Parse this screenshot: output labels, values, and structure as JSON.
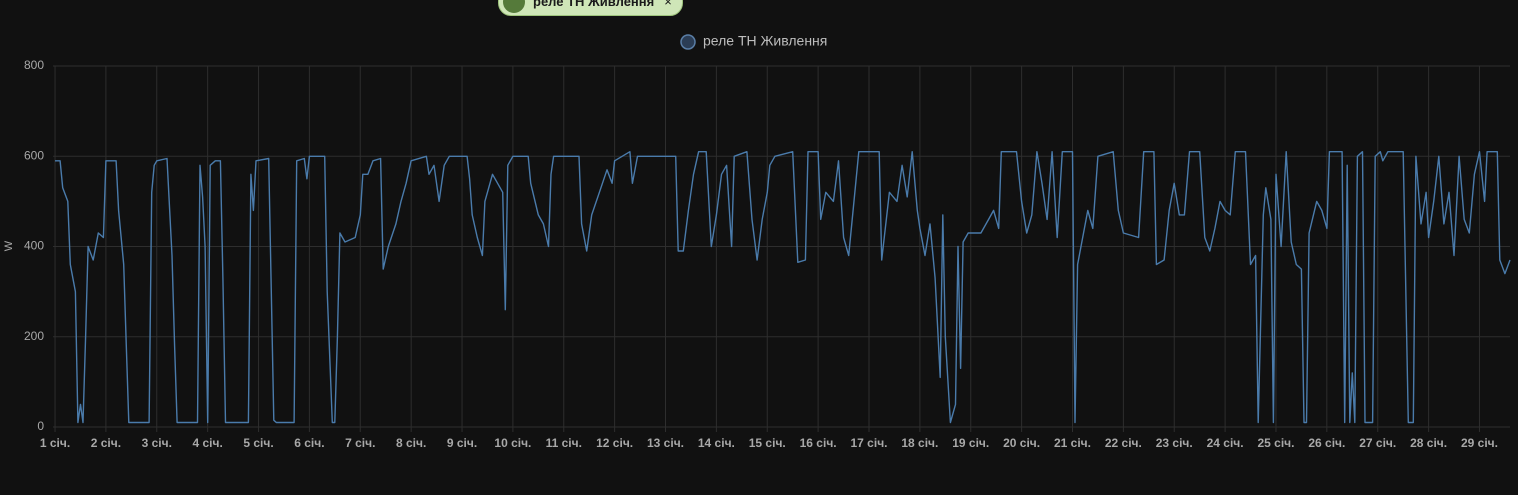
{
  "chip": {
    "label": "реле ТН Живлення"
  },
  "chart_data": {
    "type": "line",
    "y_label": "W",
    "legend": "top",
    "grid": true,
    "xlim": [
      0.96,
      29.6
    ],
    "ylim": [
      0,
      800
    ],
    "yticks": [
      0,
      200,
      400,
      600,
      800
    ],
    "xticks": [
      {
        "value": 1,
        "label": "1 січ."
      },
      {
        "value": 2,
        "label": "2 січ."
      },
      {
        "value": 3,
        "label": "3 січ."
      },
      {
        "value": 4,
        "label": "4 січ."
      },
      {
        "value": 5,
        "label": "5 січ."
      },
      {
        "value": 6,
        "label": "6 січ."
      },
      {
        "value": 7,
        "label": "7 січ."
      },
      {
        "value": 8,
        "label": "8 січ."
      },
      {
        "value": 9,
        "label": "9 січ."
      },
      {
        "value": 10,
        "label": "10 січ."
      },
      {
        "value": 11,
        "label": "11 січ."
      },
      {
        "value": 12,
        "label": "12 січ."
      },
      {
        "value": 13,
        "label": "13 січ."
      },
      {
        "value": 14,
        "label": "14 січ."
      },
      {
        "value": 15,
        "label": "15 січ."
      },
      {
        "value": 16,
        "label": "16 січ."
      },
      {
        "value": 17,
        "label": "17 січ."
      },
      {
        "value": 18,
        "label": "18 січ."
      },
      {
        "value": 19,
        "label": "19 січ."
      },
      {
        "value": 20,
        "label": "20 січ."
      },
      {
        "value": 21,
        "label": "21 січ."
      },
      {
        "value": 22,
        "label": "22 січ."
      },
      {
        "value": 23,
        "label": "23 січ."
      },
      {
        "value": 24,
        "label": "24 січ."
      },
      {
        "value": 25,
        "label": "25 січ."
      },
      {
        "value": 26,
        "label": "26 січ."
      },
      {
        "value": 27,
        "label": "27 січ."
      },
      {
        "value": 28,
        "label": "28 січ."
      },
      {
        "value": 29,
        "label": "29 січ."
      }
    ],
    "x": [
      1.0,
      1.1,
      1.15,
      1.25,
      1.3,
      1.4,
      1.45,
      1.5,
      1.55,
      1.6,
      1.65,
      1.75,
      1.85,
      1.95,
      2.0,
      2.2,
      2.25,
      2.35,
      2.4,
      2.45,
      2.85,
      2.9,
      2.95,
      3.0,
      3.2,
      3.3,
      3.35,
      3.4,
      3.8,
      3.85,
      3.9,
      3.95,
      4.0,
      4.05,
      4.15,
      4.25,
      4.3,
      4.35,
      4.8,
      4.85,
      4.9,
      4.95,
      5.2,
      5.3,
      5.35,
      5.7,
      5.75,
      5.9,
      5.95,
      6.0,
      6.3,
      6.35,
      6.45,
      6.5,
      6.55,
      6.6,
      6.7,
      6.9,
      7.0,
      7.05,
      7.15,
      7.25,
      7.4,
      7.45,
      7.55,
      7.7,
      7.8,
      7.9,
      8.0,
      8.3,
      8.35,
      8.45,
      8.55,
      8.65,
      8.75,
      9.1,
      9.15,
      9.2,
      9.3,
      9.4,
      9.45,
      9.6,
      9.8,
      9.85,
      9.9,
      10.0,
      10.3,
      10.35,
      10.5,
      10.6,
      10.7,
      10.75,
      10.8,
      11.3,
      11.35,
      11.45,
      11.55,
      11.7,
      11.85,
      11.95,
      12.0,
      12.3,
      12.35,
      12.45,
      13.2,
      13.25,
      13.35,
      13.45,
      13.55,
      13.65,
      13.8,
      13.9,
      14.0,
      14.1,
      14.2,
      14.3,
      14.35,
      14.6,
      14.7,
      14.8,
      14.9,
      15.0,
      15.05,
      15.15,
      15.5,
      15.6,
      15.75,
      15.8,
      16.0,
      16.05,
      16.15,
      16.3,
      16.4,
      16.5,
      16.6,
      16.8,
      17.2,
      17.25,
      17.4,
      17.55,
      17.65,
      17.75,
      17.85,
      17.95,
      18.0,
      18.1,
      18.2,
      18.3,
      18.4,
      18.45,
      18.5,
      18.6,
      18.7,
      18.75,
      18.8,
      18.85,
      18.95,
      19.2,
      19.35,
      19.45,
      19.55,
      19.6,
      19.9,
      20.0,
      20.1,
      20.2,
      20.3,
      20.4,
      20.5,
      20.6,
      20.7,
      20.8,
      21.0,
      21.05,
      21.1,
      21.3,
      21.4,
      21.5,
      21.8,
      21.9,
      22.0,
      22.3,
      22.4,
      22.6,
      22.65,
      22.8,
      22.9,
      23.0,
      23.1,
      23.2,
      23.3,
      23.5,
      23.6,
      23.7,
      23.8,
      23.9,
      24.0,
      24.1,
      24.2,
      24.4,
      24.5,
      24.6,
      24.65,
      24.75,
      24.8,
      24.9,
      24.95,
      25.0,
      25.1,
      25.2,
      25.3,
      25.4,
      25.5,
      25.55,
      25.6,
      25.65,
      25.8,
      25.9,
      26.0,
      26.05,
      26.3,
      26.35,
      26.4,
      26.45,
      26.5,
      26.55,
      26.6,
      26.7,
      26.75,
      26.9,
      26.95,
      27.05,
      27.1,
      27.2,
      27.5,
      27.6,
      27.7,
      27.75,
      27.85,
      27.95,
      28.0,
      28.1,
      28.2,
      28.3,
      28.4,
      28.5,
      28.6,
      28.7,
      28.8,
      28.9,
      29.0,
      29.1,
      29.15,
      29.35,
      29.4,
      29.5,
      29.6
    ],
    "series": [
      {
        "name": "реле ТН Живлення",
        "color": "#4a7bab",
        "values": [
          590,
          590,
          530,
          500,
          360,
          300,
          10,
          50,
          10,
          200,
          400,
          370,
          430,
          420,
          590,
          590,
          480,
          360,
          180,
          10,
          10,
          520,
          580,
          590,
          595,
          380,
          180,
          10,
          10,
          580,
          510,
          400,
          10,
          580,
          590,
          590,
          330,
          10,
          10,
          560,
          480,
          590,
          595,
          15,
          10,
          10,
          590,
          595,
          550,
          600,
          600,
          300,
          10,
          10,
          200,
          430,
          410,
          420,
          470,
          560,
          560,
          590,
          595,
          350,
          400,
          450,
          500,
          540,
          590,
          600,
          560,
          580,
          500,
          580,
          600,
          600,
          550,
          470,
          420,
          380,
          500,
          560,
          520,
          260,
          580,
          600,
          600,
          540,
          470,
          450,
          400,
          560,
          600,
          600,
          450,
          390,
          470,
          520,
          570,
          540,
          590,
          610,
          540,
          600,
          600,
          390,
          390,
          480,
          560,
          610,
          610,
          400,
          470,
          560,
          580,
          400,
          600,
          610,
          460,
          370,
          460,
          520,
          580,
          600,
          610,
          365,
          370,
          610,
          610,
          460,
          520,
          500,
          590,
          420,
          380,
          610,
          610,
          370,
          520,
          500,
          580,
          510,
          610,
          480,
          440,
          380,
          450,
          330,
          110,
          470,
          200,
          10,
          50,
          400,
          130,
          410,
          430,
          430,
          460,
          480,
          440,
          610,
          610,
          500,
          430,
          470,
          610,
          540,
          460,
          610,
          420,
          610,
          610,
          10,
          360,
          480,
          440,
          600,
          610,
          480,
          430,
          420,
          610,
          610,
          360,
          370,
          480,
          540,
          470,
          470,
          610,
          610,
          420,
          390,
          440,
          500,
          480,
          470,
          610,
          610,
          360,
          380,
          10,
          470,
          530,
          460,
          10,
          560,
          400,
          610,
          410,
          360,
          350,
          10,
          10,
          430,
          500,
          480,
          440,
          610,
          610,
          10,
          580,
          10,
          120,
          10,
          600,
          610,
          10,
          10,
          600,
          610,
          590,
          610,
          610,
          10,
          10,
          600,
          450,
          520,
          420,
          500,
          600,
          450,
          520,
          380,
          600,
          460,
          430,
          560,
          610,
          500,
          610,
          610,
          370,
          340,
          370
        ]
      }
    ]
  }
}
